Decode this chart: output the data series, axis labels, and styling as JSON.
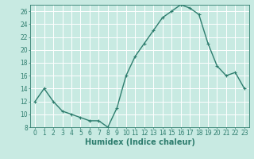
{
  "x": [
    0,
    1,
    2,
    3,
    4,
    5,
    6,
    7,
    8,
    9,
    10,
    11,
    12,
    13,
    14,
    15,
    16,
    17,
    18,
    19,
    20,
    21,
    22,
    23
  ],
  "y": [
    12,
    14,
    12,
    10.5,
    10,
    9.5,
    9,
    9,
    8,
    11,
    16,
    19,
    21,
    23,
    25,
    26,
    27,
    26.5,
    25.5,
    21,
    17.5,
    16,
    16.5,
    14
  ],
  "line_color": "#2e7d6e",
  "marker": "+",
  "marker_size": 3,
  "linewidth": 1.0,
  "bg_color": "#c8eae2",
  "grid_color": "#ffffff",
  "xlabel": "Humidex (Indice chaleur)",
  "xlabel_fontsize": 7,
  "xlabel_fontweight": "bold",
  "ylim": [
    8,
    27
  ],
  "yticks": [
    8,
    10,
    12,
    14,
    16,
    18,
    20,
    22,
    24,
    26
  ],
  "xtick_labels": [
    "0",
    "1",
    "2",
    "3",
    "4",
    "5",
    "6",
    "7",
    "8",
    "9",
    "10",
    "11",
    "12",
    "13",
    "14",
    "15",
    "16",
    "17",
    "18",
    "19",
    "20",
    "21",
    "22",
    "23"
  ],
  "tick_fontsize": 5.5
}
